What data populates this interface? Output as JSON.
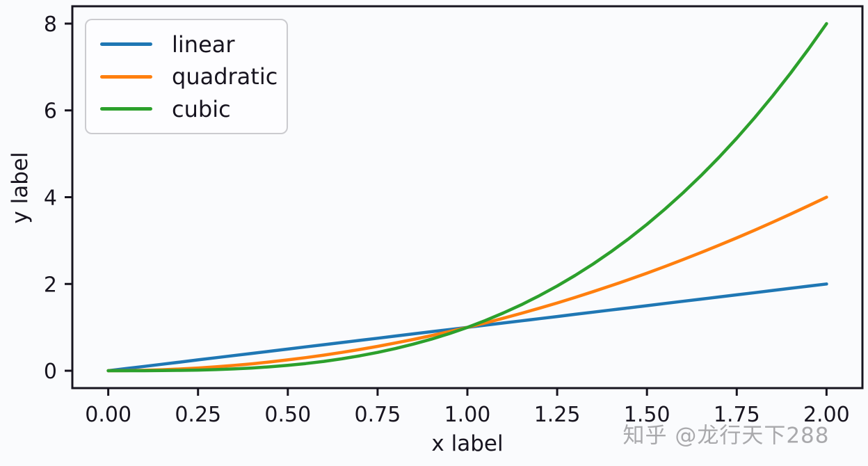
{
  "figure": {
    "watermark": "知乎 @龙行天下288",
    "colors": {
      "background": "#fafbfd",
      "axis": "#17141f",
      "text": "#17141f",
      "watermark": "#9a9a9e",
      "legend_border": "#cbcbcf",
      "legend_bg": "#fdfdff"
    }
  },
  "chart_data": {
    "type": "line",
    "title": "",
    "xlabel": "x label",
    "ylabel": "y label",
    "xlim": [
      -0.1,
      2.1
    ],
    "ylim": [
      -0.4,
      8.4
    ],
    "xticks": [
      0,
      0.25,
      0.5,
      0.75,
      1,
      1.25,
      1.5,
      1.75,
      2
    ],
    "xtick_labels": [
      "0.00",
      "0.25",
      "0.50",
      "0.75",
      "1.00",
      "1.25",
      "1.50",
      "1.75",
      "2.00"
    ],
    "yticks": [
      0,
      2,
      4,
      6,
      8
    ],
    "ytick_labels": [
      "0",
      "2",
      "4",
      "6",
      "8"
    ],
    "grid": false,
    "legend_position": "upper left",
    "x": [
      0,
      0.05,
      0.1,
      0.15,
      0.2,
      0.25,
      0.3,
      0.35,
      0.4,
      0.45,
      0.5,
      0.55,
      0.6,
      0.65,
      0.7,
      0.75,
      0.8,
      0.85,
      0.9,
      0.95,
      1,
      1.05,
      1.1,
      1.15,
      1.2,
      1.25,
      1.3,
      1.35,
      1.4,
      1.45,
      1.5,
      1.55,
      1.6,
      1.65,
      1.7,
      1.75,
      1.8,
      1.85,
      1.9,
      1.95,
      2
    ],
    "series": [
      {
        "name": "linear",
        "color": "#1f77b4",
        "values": [
          0,
          0.05,
          0.1,
          0.15,
          0.2,
          0.25,
          0.3,
          0.35,
          0.4,
          0.45,
          0.5,
          0.55,
          0.6,
          0.65,
          0.7,
          0.75,
          0.8,
          0.85,
          0.9,
          0.95,
          1,
          1.05,
          1.1,
          1.15,
          1.2,
          1.25,
          1.3,
          1.35,
          1.4,
          1.45,
          1.5,
          1.55,
          1.6,
          1.65,
          1.7,
          1.75,
          1.8,
          1.85,
          1.9,
          1.95,
          2
        ]
      },
      {
        "name": "quadratic",
        "color": "#ff7f0e",
        "values": [
          0,
          0.0025,
          0.01,
          0.0225,
          0.04,
          0.0625,
          0.09,
          0.1225,
          0.16,
          0.2025,
          0.25,
          0.3025,
          0.36,
          0.4225,
          0.49,
          0.5625,
          0.64,
          0.7225,
          0.81,
          0.9025,
          1,
          1.1025,
          1.21,
          1.3225,
          1.44,
          1.5625,
          1.69,
          1.8225,
          1.96,
          2.1025,
          2.25,
          2.4025,
          2.56,
          2.7225,
          2.89,
          3.0625,
          3.24,
          3.4225,
          3.61,
          3.8025,
          4
        ]
      },
      {
        "name": "cubic",
        "color": "#2ca02c",
        "values": [
          0,
          0.000125,
          0.001,
          0.003375,
          0.008,
          0.015625,
          0.027,
          0.042875,
          0.064,
          0.091125,
          0.125,
          0.166375,
          0.216,
          0.274625,
          0.343,
          0.421875,
          0.512,
          0.614125,
          0.729,
          0.857375,
          1,
          1.157625,
          1.331,
          1.520875,
          1.728,
          1.953125,
          2.197,
          2.460375,
          2.744,
          3.048625,
          3.375,
          3.723875,
          4.096,
          4.492125,
          4.913,
          5.359375,
          5.832,
          6.331625,
          6.859,
          7.414875,
          8
        ]
      }
    ]
  }
}
